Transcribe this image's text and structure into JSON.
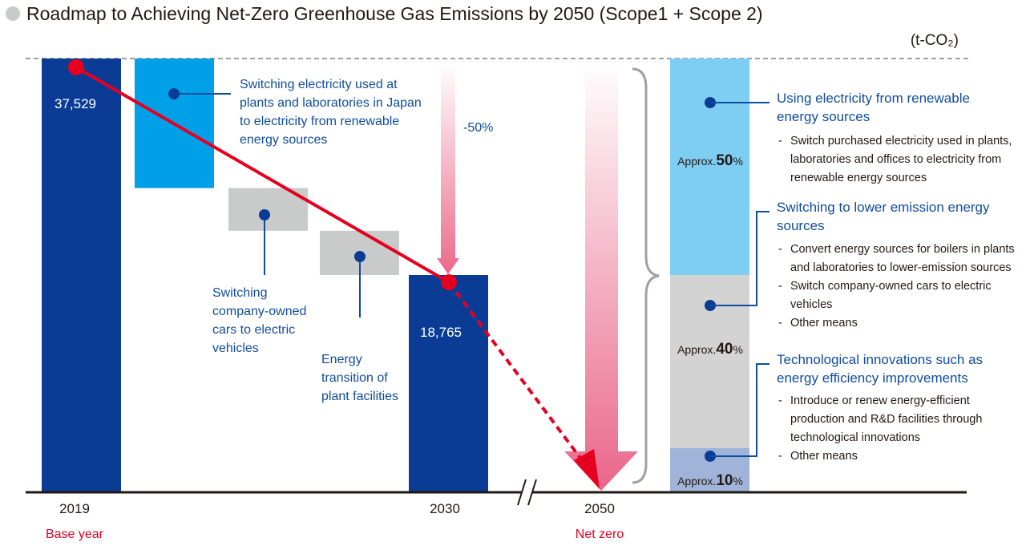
{
  "title": "Roadmap to Achieving Net-Zero Greenhouse Gas Emissions by 2050 (Scope1 + Scope 2)",
  "unit_label": "(t-CO₂)",
  "colors": {
    "base_bar": "#0a3c96",
    "renewable": "#00a0e9",
    "gray_step": "#c9caca",
    "line_red": "#e60020",
    "right_renewable": "#7ecef4",
    "right_lower": "#d3d3d4",
    "right_tech": "#9fb4d8",
    "label_blue": "#0f4d9e"
  },
  "chart_data": {
    "type": "bar",
    "subtype": "waterfall",
    "categories": [
      "2019",
      "2030",
      "2050"
    ],
    "category_sublabels": [
      "Base year",
      "",
      "Net zero"
    ],
    "values": [
      37529,
      18765,
      0
    ],
    "value_labels": [
      "37,529",
      "18,765",
      ""
    ],
    "reduction_2030_label": "-50%",
    "steps": [
      {
        "label_lines": [
          "Switching electricity used at",
          "plants and laboratories in Japan",
          "to electricity from renewable",
          "energy sources"
        ],
        "from": 37529,
        "to": 26300
      },
      {
        "label_lines": [
          "Switching",
          "company-owned",
          "cars to electric",
          "vehicles"
        ],
        "from": 26300,
        "to": 22600
      },
      {
        "label_lines": [
          "Energy",
          "transition of",
          "plant facilities"
        ],
        "from": 22600,
        "to": 18765
      }
    ],
    "breakdown_to_2050": [
      {
        "approx_prefix": "Approx.",
        "percent_number": "50",
        "percent_sign": "%",
        "value": 50,
        "heading_lines": [
          "Using electricity from renewable",
          "energy sources"
        ],
        "bullets": [
          [
            "Switch purchased electricity used in plants,",
            "laboratories and offices to electricity from",
            "renewable energy sources"
          ]
        ]
      },
      {
        "approx_prefix": "Approx.",
        "percent_number": "40",
        "percent_sign": "%",
        "value": 40,
        "heading_lines": [
          "Switching to lower emission energy",
          "sources"
        ],
        "bullets": [
          [
            "Convert energy sources for boilers in plants",
            "and laboratories to lower-emission sources"
          ],
          [
            "Switch company-owned cars to electric",
            "vehicles"
          ],
          [
            "Other means"
          ]
        ]
      },
      {
        "approx_prefix": "Approx.",
        "percent_number": "10",
        "percent_sign": "%",
        "value": 10,
        "heading_lines": [
          "Technological innovations such as",
          "energy efficiency improvements"
        ],
        "bullets": [
          [
            "Introduce or renew energy-efficient",
            "production and R&D facilities through",
            "technological innovations"
          ],
          [
            "Other means"
          ]
        ]
      }
    ]
  }
}
